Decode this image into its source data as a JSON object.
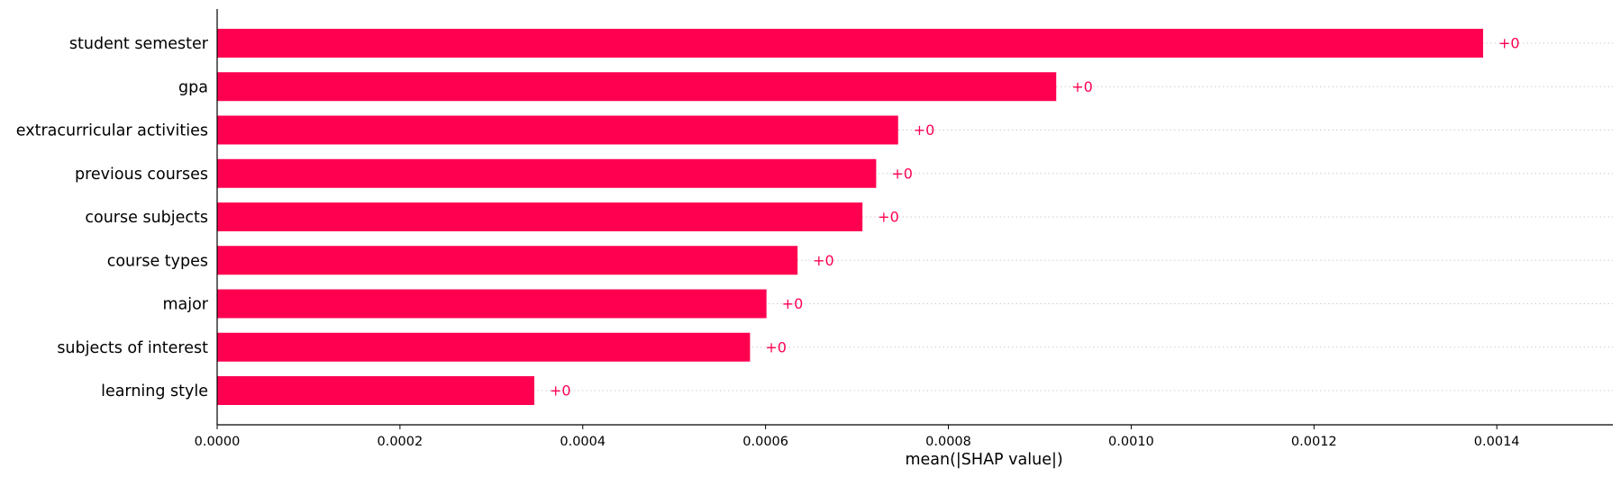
{
  "chart_data": {
    "type": "bar",
    "orientation": "horizontal",
    "categories": [
      "student semester",
      "gpa",
      "extracurricular activities",
      "previous courses",
      "course subjects",
      "course types",
      "major",
      "subjects of interest",
      "learning style"
    ],
    "values": [
      0.001385,
      0.000918,
      0.000745,
      0.000721,
      0.000706,
      0.000635,
      0.000601,
      0.000583,
      0.000347
    ],
    "data_labels": [
      "+0",
      "+0",
      "+0",
      "+0",
      "+0",
      "+0",
      "+0",
      "+0",
      "+0"
    ],
    "xlabel": "mean(|SHAP value|)",
    "xlim": [
      0,
      0.001527
    ],
    "xticks": [
      0,
      0.0002,
      0.0004,
      0.0006,
      0.0008,
      0.001,
      0.0012,
      0.0014
    ],
    "xtick_labels": [
      "0.0000",
      "0.0002",
      "0.0004",
      "0.0006",
      "0.0008",
      "0.0010",
      "0.0012",
      "0.0014"
    ],
    "grid": "dotted horizontal lines per category",
    "colors": {
      "bar": "#ff0051",
      "label": "#ff0051",
      "grid": "#cccccc",
      "axis": "#000000"
    }
  }
}
